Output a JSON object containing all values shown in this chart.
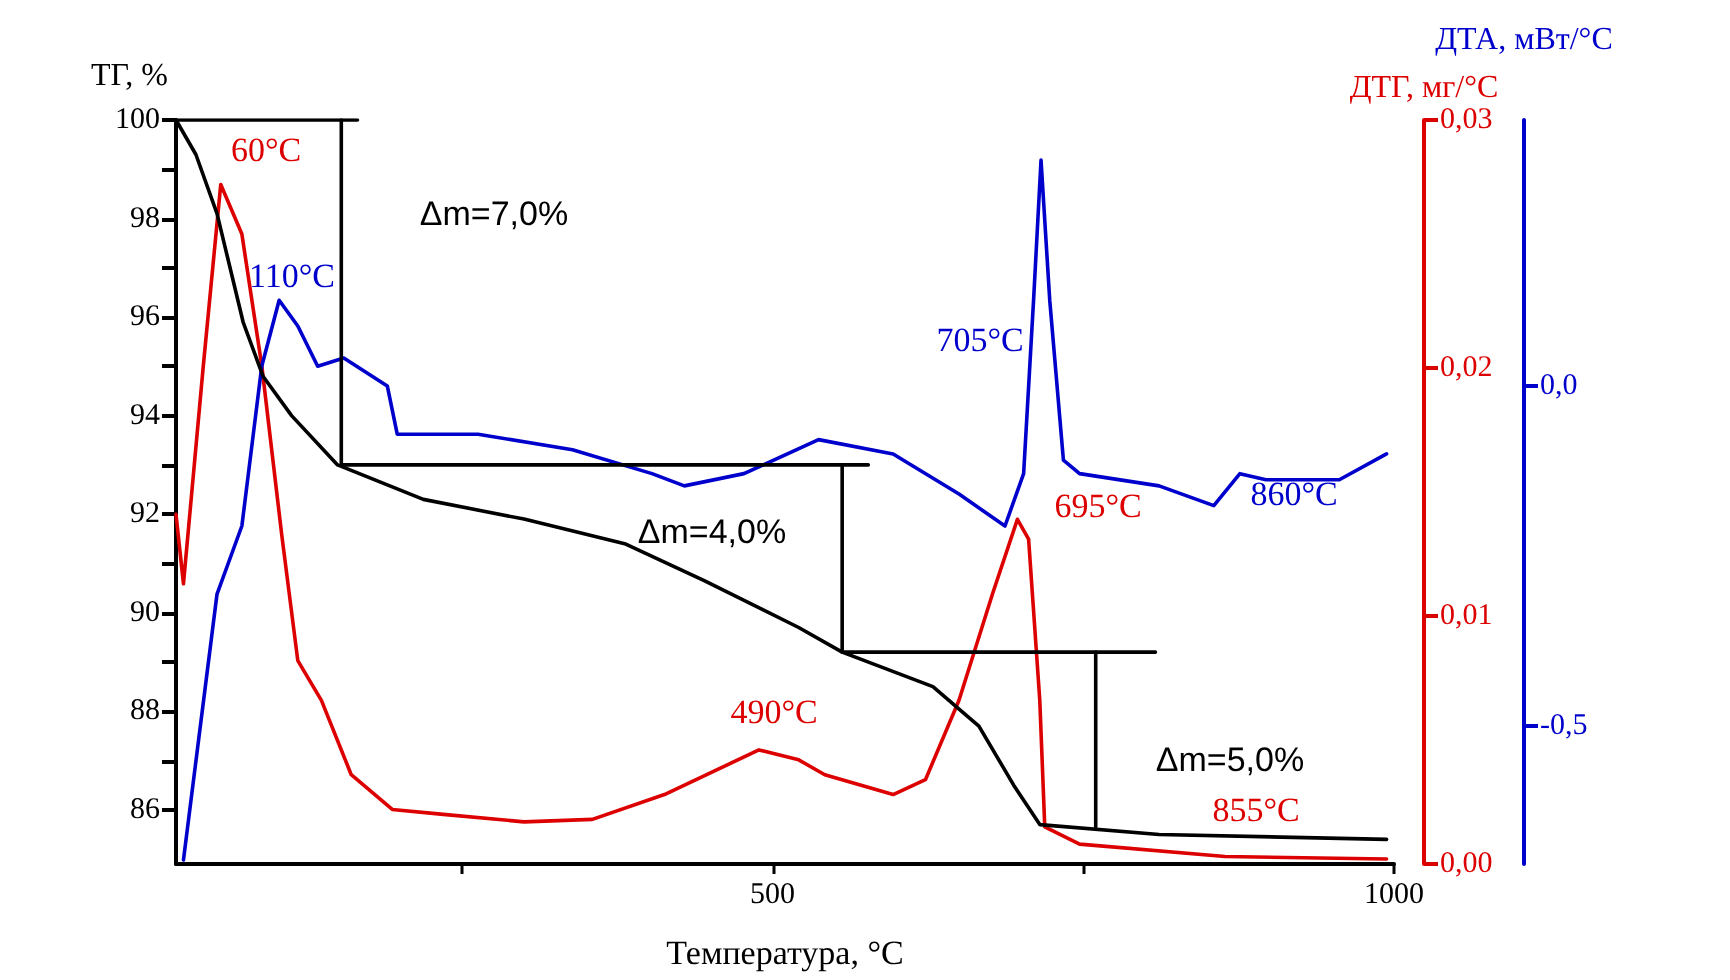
{
  "chart_data": {
    "type": "line",
    "xlabel": "Температура, °C",
    "ylabel": "ТГ, %",
    "y2label": "ДТГ, мг/°C",
    "y3label": "ДТА, мВт/°C",
    "xlim": [
      20,
      1000
    ],
    "xticks": [
      {
        "value": 250,
        "label": null
      },
      500,
      {
        "value": 750,
        "label": null
      },
      1000
    ],
    "ylim": [
      84.9,
      100
    ],
    "yticks": [
      86,
      {
        "value": 87,
        "label": null
      },
      88,
      {
        "value": 89,
        "label": null
      },
      90,
      {
        "value": 91,
        "label": null
      },
      92,
      {
        "value": 93,
        "label": null
      },
      94,
      {
        "value": 95,
        "label": null
      },
      96,
      {
        "value": 97,
        "label": null
      },
      98,
      {
        "value": 99,
        "label": null
      },
      100
    ],
    "y2lim": [
      0,
      0.03
    ],
    "y2ticks": [
      {
        "value": 0,
        "label": "0,00"
      },
      {
        "value": 0.01,
        "label": "0,01"
      },
      {
        "value": 0.02,
        "label": "0,02"
      },
      {
        "value": 0.03,
        "label": "0,03"
      }
    ],
    "y3lim": [
      -0.703,
      0.391
    ],
    "y3ticks": [
      {
        "value": -0.5,
        "label": "-0,5"
      },
      {
        "value": 0,
        "label": "0,0"
      }
    ],
    "grid": false,
    "line_style": "solid",
    "series": [
      {
        "color": "#000000",
        "x": [
          20,
          36,
          53,
          74,
          90,
          113,
          150,
          219,
          300,
          381,
          445,
          521,
          556,
          629,
          666,
          694,
          715,
          811,
          994
        ],
        "values": [
          100,
          99.3,
          98.1,
          95.9,
          94.8,
          94.0,
          93.0,
          92.3,
          91.9,
          91.4,
          90.65,
          89.7,
          89.2,
          88.5,
          87.7,
          86.5,
          85.7,
          85.5,
          85.4
        ]
      },
      {
        "color": "#000000",
        "x": [
          20,
          166
        ],
        "values": [
          100,
          100
        ]
      },
      {
        "color": "#000000",
        "x": [
          153,
          153,
          577
        ],
        "values": [
          100,
          93,
          93
        ]
      },
      {
        "color": "#000000",
        "x": [
          556,
          556,
          808
        ],
        "values": [
          93,
          89.2,
          89.2
        ]
      },
      {
        "color": "#000000",
        "x": [
          760,
          760
        ],
        "values": [
          89.2,
          85.65
        ]
      },
      {
        "color": "#dd0000",
        "axis": "y2",
        "x": [
          20,
          26,
          42,
          56,
          73,
          89,
          105,
          118,
          137,
          161,
          194,
          235,
          300,
          355,
          413,
          489,
          521,
          542,
          597,
          623,
          650,
          677,
          697,
          706,
          715,
          719,
          747,
          864,
          994
        ],
        "values": [
          0.0141,
          0.0113,
          0.0201,
          0.0274,
          0.0254,
          0.0201,
          0.0133,
          0.0082,
          0.0066,
          0.0036,
          0.0022,
          0.002,
          0.0017,
          0.0018,
          0.0028,
          0.0046,
          0.0042,
          0.0036,
          0.0028,
          0.0034,
          0.0066,
          0.0109,
          0.0139,
          0.0131,
          0.0066,
          0.0015,
          0.0008,
          0.0003,
          0.0002
        ]
      },
      {
        "color": "#0000cc",
        "axis": "y3",
        "x": [
          26,
          53,
          73,
          89,
          103,
          118,
          134,
          155,
          190,
          198,
          263,
          339,
          403,
          429,
          477,
          537,
          597,
          650,
          687,
          702,
          710,
          716,
          723,
          734,
          747,
          811,
          855,
          876,
          897,
          956,
          994
        ],
        "values": [
          -0.697,
          -0.306,
          -0.206,
          0.029,
          0.126,
          0.088,
          0.029,
          0.041,
          0.0,
          -0.071,
          -0.071,
          -0.094,
          -0.129,
          -0.147,
          -0.129,
          -0.079,
          -0.1,
          -0.159,
          -0.206,
          -0.129,
          0.126,
          0.332,
          0.126,
          -0.109,
          -0.129,
          -0.147,
          -0.176,
          -0.129,
          -0.138,
          -0.138,
          -0.1
        ]
      }
    ],
    "annotations": [
      "60°C",
      "110°C",
      "Δm=7,0%",
      "705°C",
      "695°C",
      "860°C",
      "Δm=4,0%",
      "490°C",
      "Δm=5,0%",
      "855°C"
    ]
  }
}
